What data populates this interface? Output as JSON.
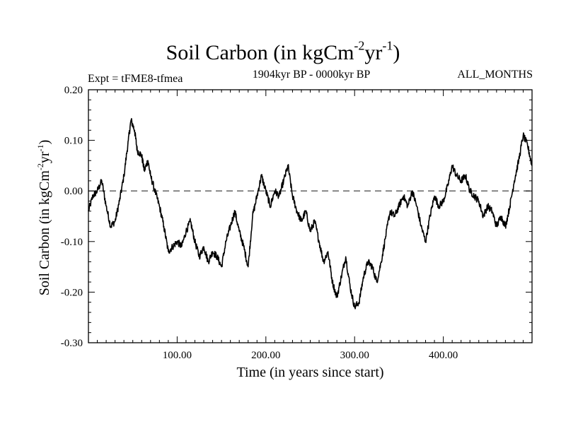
{
  "chart_data": {
    "type": "line",
    "title": "Soil Carbon (in kgCm",
    "title_sup1": "-2",
    "title_mid": "yr",
    "title_sup2": "-1",
    "title_end": ")",
    "subtitle_left": "Expt = tFME8-tfmea",
    "subtitle_center": "1904kyr BP - 0000kyr BP",
    "subtitle_right": "ALL_MONTHS",
    "xlabel": "Time (in years since start)",
    "ylabel": "Soil Carbon (in kgCm",
    "ylabel_sup1": "-2",
    "ylabel_mid": "yr",
    "ylabel_sup2": "-1",
    "ylabel_end": ")",
    "xlim": [
      0,
      500
    ],
    "ylim": [
      -0.3,
      0.2
    ],
    "x_ticks": [
      100,
      200,
      300,
      400
    ],
    "x_tick_labels": [
      "100.00",
      "200.00",
      "300.00",
      "400.00"
    ],
    "y_ticks": [
      -0.3,
      -0.2,
      -0.1,
      0.0,
      0.1,
      0.2
    ],
    "y_tick_labels": [
      "-0.30",
      "-0.20",
      "-0.10",
      "0.00",
      "0.10",
      "0.20"
    ],
    "reference_line": 0.0,
    "series": [
      {
        "name": "Soil Carbon",
        "x": [
          0,
          5,
          10,
          15,
          20,
          25,
          30,
          35,
          40,
          45,
          48,
          52,
          55,
          60,
          63,
          67,
          70,
          75,
          80,
          85,
          90,
          95,
          100,
          105,
          110,
          115,
          120,
          125,
          130,
          135,
          140,
          145,
          150,
          155,
          160,
          165,
          170,
          175,
          180,
          185,
          190,
          195,
          200,
          205,
          210,
          215,
          220,
          225,
          230,
          235,
          240,
          245,
          250,
          255,
          260,
          265,
          270,
          275,
          280,
          285,
          290,
          295,
          300,
          305,
          310,
          315,
          320,
          325,
          330,
          335,
          340,
          345,
          350,
          355,
          360,
          365,
          370,
          375,
          380,
          385,
          390,
          395,
          400,
          405,
          410,
          415,
          420,
          425,
          430,
          435,
          440,
          445,
          450,
          455,
          460,
          465,
          470,
          475,
          480,
          485,
          490,
          495,
          500
        ],
        "y": [
          -0.04,
          -0.01,
          0.0,
          0.02,
          -0.03,
          -0.07,
          -0.06,
          -0.02,
          0.03,
          0.1,
          0.14,
          0.12,
          0.08,
          0.07,
          0.04,
          0.06,
          0.03,
          0.0,
          -0.03,
          -0.07,
          -0.12,
          -0.11,
          -0.1,
          -0.11,
          -0.08,
          -0.06,
          -0.1,
          -0.13,
          -0.11,
          -0.14,
          -0.12,
          -0.13,
          -0.15,
          -0.1,
          -0.07,
          -0.04,
          -0.08,
          -0.11,
          -0.15,
          -0.05,
          -0.01,
          0.03,
          0.0,
          -0.03,
          0.0,
          -0.01,
          0.02,
          0.05,
          -0.01,
          -0.04,
          -0.06,
          -0.04,
          -0.08,
          -0.06,
          -0.1,
          -0.14,
          -0.12,
          -0.18,
          -0.21,
          -0.17,
          -0.13,
          -0.19,
          -0.23,
          -0.22,
          -0.17,
          -0.14,
          -0.15,
          -0.18,
          -0.14,
          -0.09,
          -0.04,
          -0.05,
          -0.03,
          -0.01,
          -0.03,
          0.0,
          -0.03,
          -0.07,
          -0.1,
          -0.05,
          -0.01,
          -0.03,
          -0.02,
          0.01,
          0.05,
          0.03,
          0.02,
          0.03,
          0.0,
          -0.01,
          -0.02,
          -0.05,
          -0.03,
          -0.04,
          -0.07,
          -0.05,
          -0.07,
          -0.03,
          0.02,
          0.06,
          0.11,
          0.09,
          0.05
        ]
      }
    ]
  }
}
